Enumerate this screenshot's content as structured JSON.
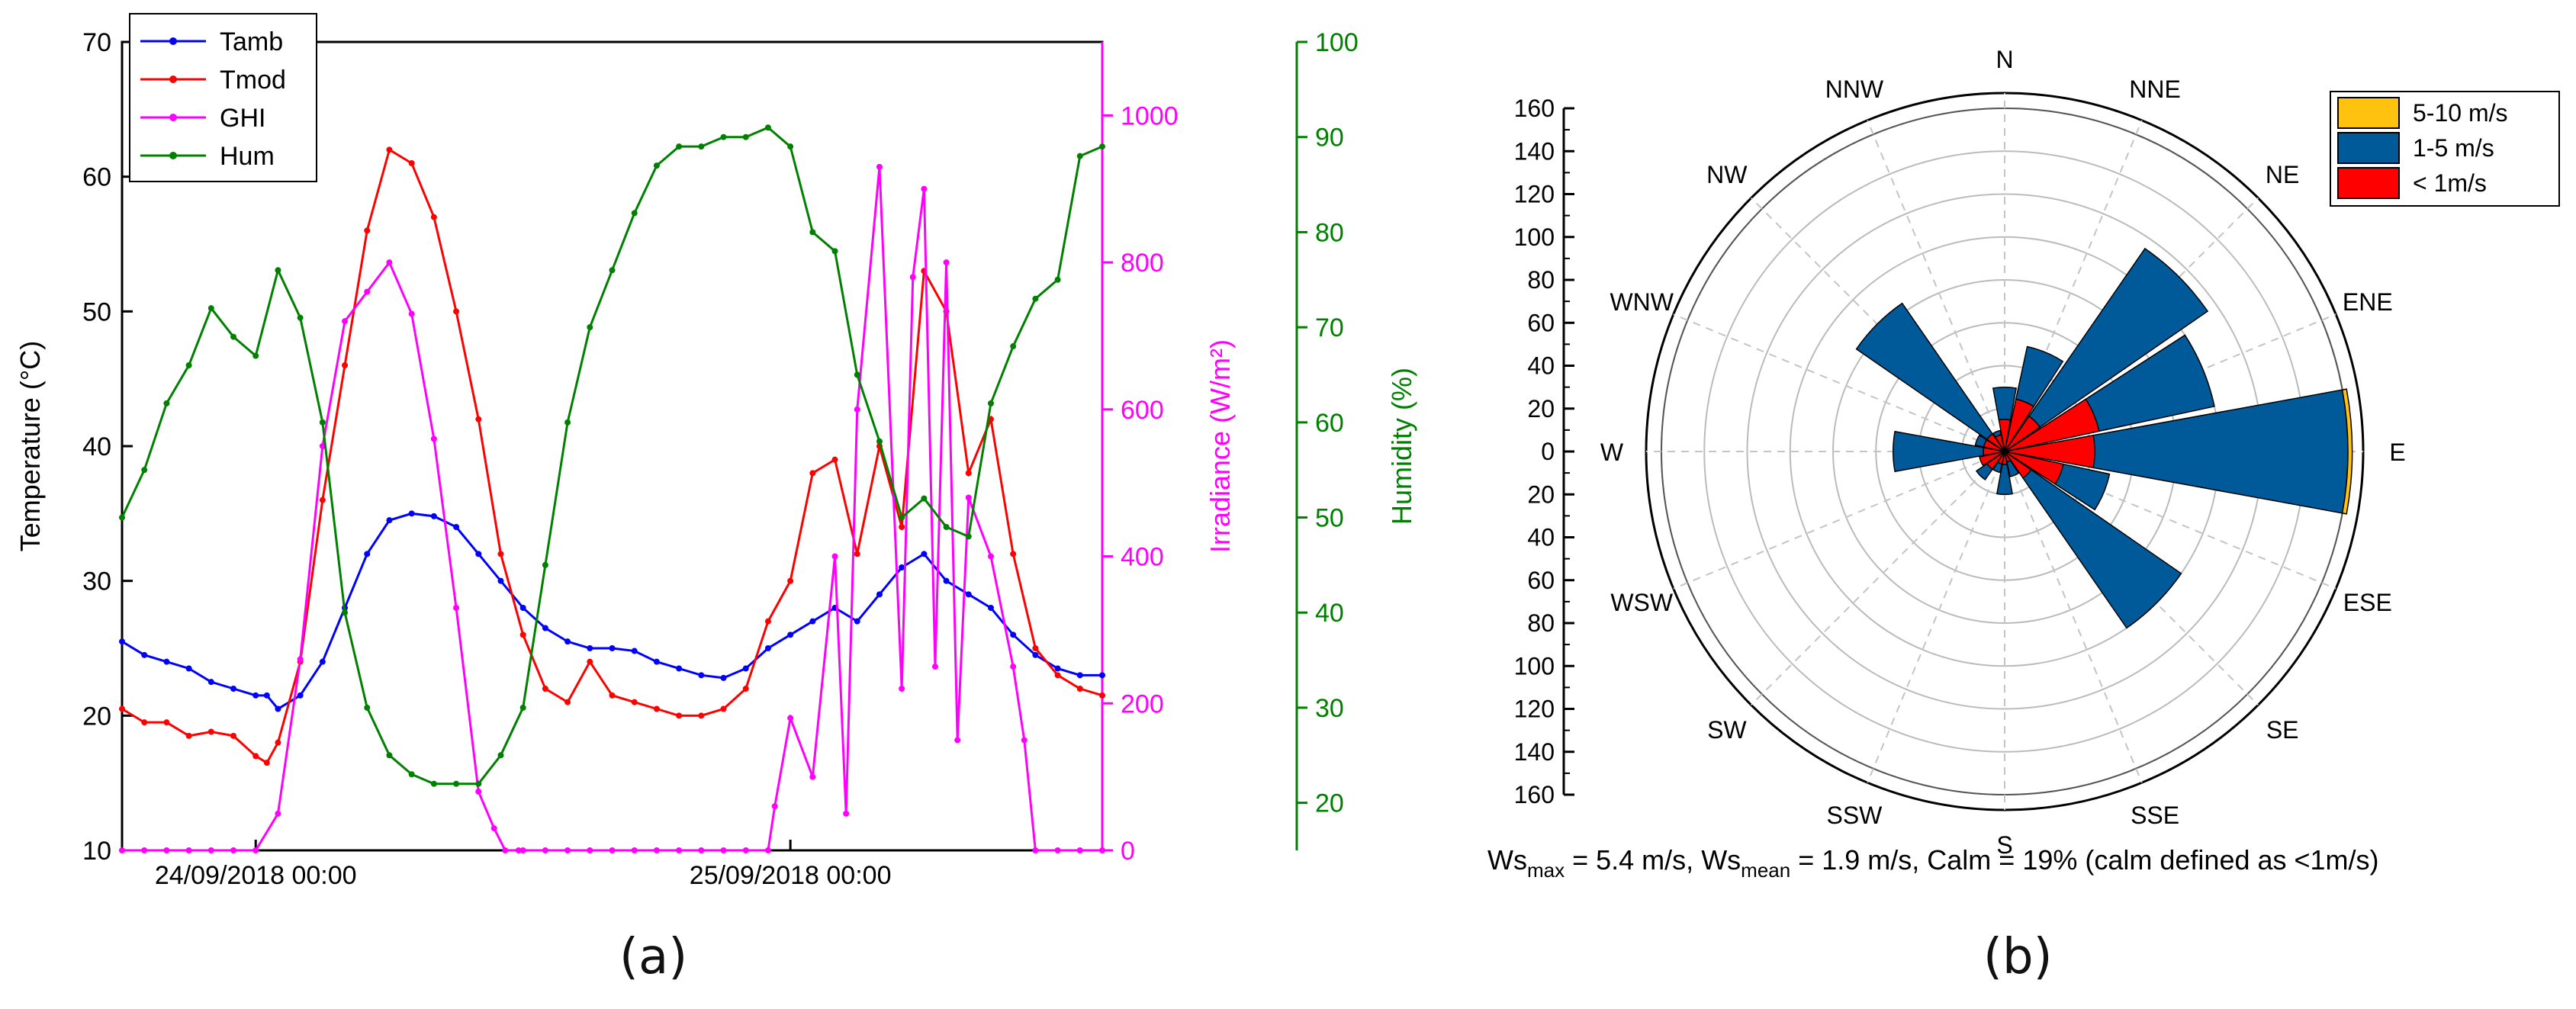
{
  "panel_labels": [
    "(a)",
    "(b)"
  ],
  "chart_data": [
    {
      "type": "line",
      "x_ticks": [
        "24/09/2018 00:00",
        "25/09/2018 00:00"
      ],
      "axes": [
        {
          "label": "Temperature (°C)",
          "range": [
            10,
            70
          ],
          "ticks": [
            10,
            20,
            30,
            40,
            50,
            60,
            70
          ],
          "color": "#000000",
          "side": "left"
        },
        {
          "label": "Irradiance (W/m²)",
          "range": [
            0,
            1100
          ],
          "ticks": [
            0,
            200,
            400,
            600,
            800,
            1000
          ],
          "color": "#ff00ff",
          "side": "right"
        },
        {
          "label": "Humidity (%)",
          "range": [
            15,
            100
          ],
          "ticks": [
            20,
            30,
            40,
            50,
            60,
            70,
            80,
            90,
            100
          ],
          "color": "#008000",
          "side": "right"
        }
      ],
      "legend": [
        "Tamb",
        "Tmod",
        "GHI",
        "Hum"
      ],
      "legend_position": "top-left",
      "x_range_hours": [
        -6,
        38
      ],
      "series": [
        {
          "name": "Tamb",
          "axis": 0,
          "color": "#0000ff",
          "x": [
            -6,
            -5,
            -4,
            -3,
            -2,
            -1,
            0,
            0.5,
            1,
            2,
            3,
            4,
            5,
            6,
            7,
            8,
            9,
            10,
            11,
            12,
            13,
            14,
            15,
            16,
            17,
            18,
            19,
            20,
            21,
            22,
            23,
            24,
            25,
            26,
            27,
            28,
            29,
            30,
            31,
            32,
            33,
            34,
            35,
            36,
            37,
            38
          ],
          "y": [
            25.5,
            24.5,
            24,
            23.5,
            22.5,
            22,
            21.5,
            21.5,
            20.5,
            21.5,
            24,
            28,
            32,
            34.5,
            35,
            34.8,
            34,
            32,
            30,
            28,
            26.5,
            25.5,
            25,
            25,
            24.8,
            24,
            23.5,
            23,
            22.8,
            23.5,
            25,
            26,
            27,
            28,
            27,
            29,
            31,
            32,
            30,
            29,
            28,
            26,
            24.5,
            23.5,
            23,
            23
          ]
        },
        {
          "name": "Tmod",
          "axis": 0,
          "color": "#ff0000",
          "x": [
            -6,
            -5,
            -4,
            -3,
            -2,
            -1,
            0,
            0.5,
            1,
            2,
            3,
            4,
            5,
            6,
            7,
            8,
            9,
            10,
            11,
            12,
            13,
            14,
            15,
            16,
            17,
            18,
            19,
            20,
            21,
            22,
            23,
            24,
            25,
            26,
            27,
            28,
            29,
            30,
            31,
            32,
            33,
            34,
            35,
            36,
            37,
            38
          ],
          "y": [
            20.5,
            19.5,
            19.5,
            18.5,
            18.8,
            18.5,
            17,
            16.5,
            18,
            24,
            36,
            46,
            56,
            62,
            61,
            57,
            50,
            42,
            32,
            26,
            22,
            21,
            24,
            21.5,
            21,
            20.5,
            20,
            20,
            20.5,
            22,
            27,
            30,
            38,
            39,
            32,
            40,
            34,
            53,
            50,
            38,
            42,
            32,
            25,
            23,
            22,
            21.5
          ]
        },
        {
          "name": "GHI",
          "axis": 1,
          "color": "#ff00ff",
          "x": [
            -6,
            -5,
            -4,
            -3,
            -2,
            -1,
            0,
            1,
            2,
            3,
            4,
            5,
            6,
            7,
            8,
            9,
            10,
            10.7,
            11.2,
            11.8,
            12,
            13,
            14,
            15,
            16,
            17,
            18,
            19,
            20,
            21,
            22,
            23,
            23.3,
            24,
            25,
            26,
            26.5,
            27,
            28,
            29,
            29.5,
            30,
            30.5,
            31,
            31.5,
            32,
            33,
            34,
            34.5,
            35,
            36,
            37,
            38
          ],
          "y": [
            0,
            0,
            0,
            0,
            0,
            0,
            0,
            50,
            260,
            550,
            720,
            760,
            800,
            730,
            560,
            330,
            80,
            30,
            0,
            0,
            0,
            0,
            0,
            0,
            0,
            0,
            0,
            0,
            0,
            0,
            0,
            0,
            60,
            180,
            100,
            400,
            50,
            600,
            930,
            220,
            780,
            900,
            250,
            800,
            150,
            480,
            400,
            250,
            150,
            0,
            0,
            0,
            0
          ]
        },
        {
          "name": "Hum",
          "axis": 2,
          "color": "#008000",
          "x": [
            -6,
            -5,
            -4,
            -3,
            -2,
            -1,
            0,
            1,
            2,
            3,
            4,
            5,
            6,
            7,
            8,
            9,
            10,
            11,
            12,
            13,
            14,
            15,
            16,
            17,
            18,
            19,
            20,
            21,
            22,
            23,
            24,
            25,
            26,
            27,
            28,
            29,
            30,
            31,
            32,
            33,
            34,
            35,
            36,
            37,
            38
          ],
          "y": [
            50,
            55,
            62,
            66,
            72,
            69,
            67,
            76,
            71,
            60,
            40,
            30,
            25,
            23,
            22,
            22,
            22,
            25,
            30,
            45,
            60,
            70,
            76,
            82,
            87,
            89,
            89,
            90,
            90,
            91,
            89,
            80,
            78,
            65,
            58,
            50,
            52,
            49,
            48,
            62,
            68,
            73,
            75,
            88,
            89
          ]
        }
      ]
    },
    {
      "type": "windrose",
      "directions": [
        "N",
        "NNE",
        "NE",
        "ENE",
        "E",
        "ESE",
        "SE",
        "SSE",
        "S",
        "SSW",
        "SW",
        "WSW",
        "W",
        "WNW",
        "NW",
        "NNW"
      ],
      "radial_axis": {
        "range": [
          0,
          160
        ],
        "ticks": [
          0,
          20,
          40,
          60,
          80,
          100,
          120,
          140,
          160
        ]
      },
      "legend_position": "top-right",
      "series": [
        {
          "name": "< 1m/s",
          "color": "#ff0000",
          "values": [
            15,
            25,
            20,
            45,
            42,
            28,
            15,
            5,
            6,
            6,
            10,
            12,
            10,
            10,
            10,
            8
          ]
        },
        {
          "name": "1-5 m/s",
          "color": "#005a9a",
          "values": [
            30,
            50,
            115,
            100,
            160,
            50,
            100,
            12,
            20,
            10,
            16,
            12,
            52,
            14,
            84,
            10
          ]
        },
        {
          "name": "5-10 m/s",
          "color": "#ffc20e",
          "values": [
            0,
            0,
            0,
            0,
            162,
            0,
            0,
            0,
            0,
            0,
            0,
            0,
            0,
            0,
            0,
            0
          ]
        }
      ],
      "stats_text": {
        "ws": "Ws",
        "max_sub": "max",
        "max_rest": " = 5.4 m/s, ",
        "mean_sub": "mean",
        "mean_rest": " = 1.9 m/s, Calm = 19% (calm defined as <1m/s)"
      }
    }
  ]
}
